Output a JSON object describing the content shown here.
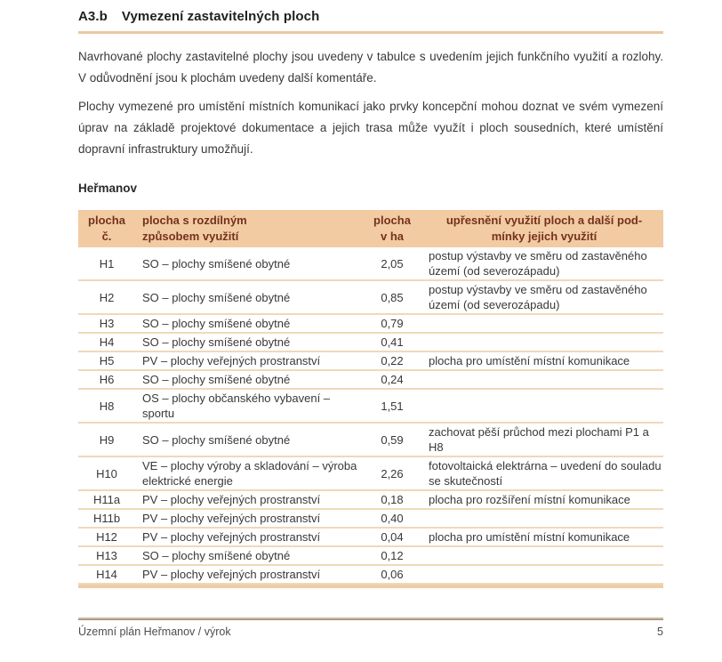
{
  "heading": {
    "number": "A3.b",
    "title": "Vymezení zastavitelných ploch"
  },
  "paragraphs": [
    "Navrhované plochy zastavitelné plochy jsou uvedeny v tabulce s uvedením jejich funkčního využití a rozlohy. V odůvodnění jsou k plochám uvedeny další komentáře.",
    "Plochy vymezené pro umístění místních komunikací jako prvky koncepční mohou doznat ve svém vymezení úprav na základě projektové dokumentace a jejich trasa může využít i ploch sousedních, které umístění dopravní infrastruktury umožňují."
  ],
  "municipality": "Heřmanov",
  "table": {
    "columns": [
      {
        "lines": [
          "plocha",
          "č."
        ]
      },
      {
        "lines": [
          "plocha s rozdílným",
          "způsobem využití"
        ]
      },
      {
        "lines": [
          "plocha",
          "v ha"
        ]
      },
      {
        "lines": [
          "upřesnění využití ploch a další pod-",
          "mínky jejich využití"
        ]
      }
    ],
    "rows": [
      {
        "id": "H1",
        "use": "SO – plochy smíšené obytné",
        "area": "2,05",
        "note": "postup výstavby ve směru od zastavěného území (od severozápadu)"
      },
      {
        "id": "H2",
        "use": "SO – plochy smíšené obytné",
        "area": "0,85",
        "note": "postup výstavby ve směru od zastavěného území (od severozápadu)"
      },
      {
        "id": "H3",
        "use": "SO – plochy smíšené obytné",
        "area": "0,79",
        "note": ""
      },
      {
        "id": "H4",
        "use": "SO – plochy smíšené obytné",
        "area": "0,41",
        "note": ""
      },
      {
        "id": "H5",
        "use": "PV – plochy veřejných prostranství",
        "area": "0,22",
        "note": "plocha pro umístění místní komunikace"
      },
      {
        "id": "H6",
        "use": "SO – plochy smíšené obytné",
        "area": "0,24",
        "note": ""
      },
      {
        "id": "H8",
        "use": "OS – plochy občanského vybavení – sportu",
        "area": "1,51",
        "note": ""
      },
      {
        "id": "H9",
        "use": "SO – plochy smíšené obytné",
        "area": "0,59",
        "note": "zachovat pěší průchod mezi plochami P1 a H8"
      },
      {
        "id": "H10",
        "use": "VE – plochy výroby a skladování – výroba elektrické energie",
        "area": "2,26",
        "note": "fotovoltaická elektrárna – uvedení do souladu se skutečností"
      },
      {
        "id": "H11a",
        "use": "PV – plochy veřejných prostranství",
        "area": "0,18",
        "note": "plocha pro rozšíření místní komunikace"
      },
      {
        "id": "H11b",
        "use": "PV – plochy veřejných prostranství",
        "area": "0,40",
        "note": ""
      },
      {
        "id": "H12",
        "use": "PV – plochy veřejných prostranství",
        "area": "0,04",
        "note": "plocha pro umístění místní komunikace"
      },
      {
        "id": "H13",
        "use": "SO – plochy smíšené obytné",
        "area": "0,12",
        "note": ""
      },
      {
        "id": "H14",
        "use": "PV – plochy veřejných prostranství",
        "area": "0,06",
        "note": ""
      }
    ]
  },
  "footer": {
    "left": "Územní plán Heřmanov / výrok",
    "page_number": "5"
  },
  "colors": {
    "table_header_band": "#f2cba3",
    "table_header_text": "#74321e",
    "rule_tan": "#e9c8a0",
    "row_separator": "#f0d8ba",
    "body_text": "#3a3a3a"
  }
}
